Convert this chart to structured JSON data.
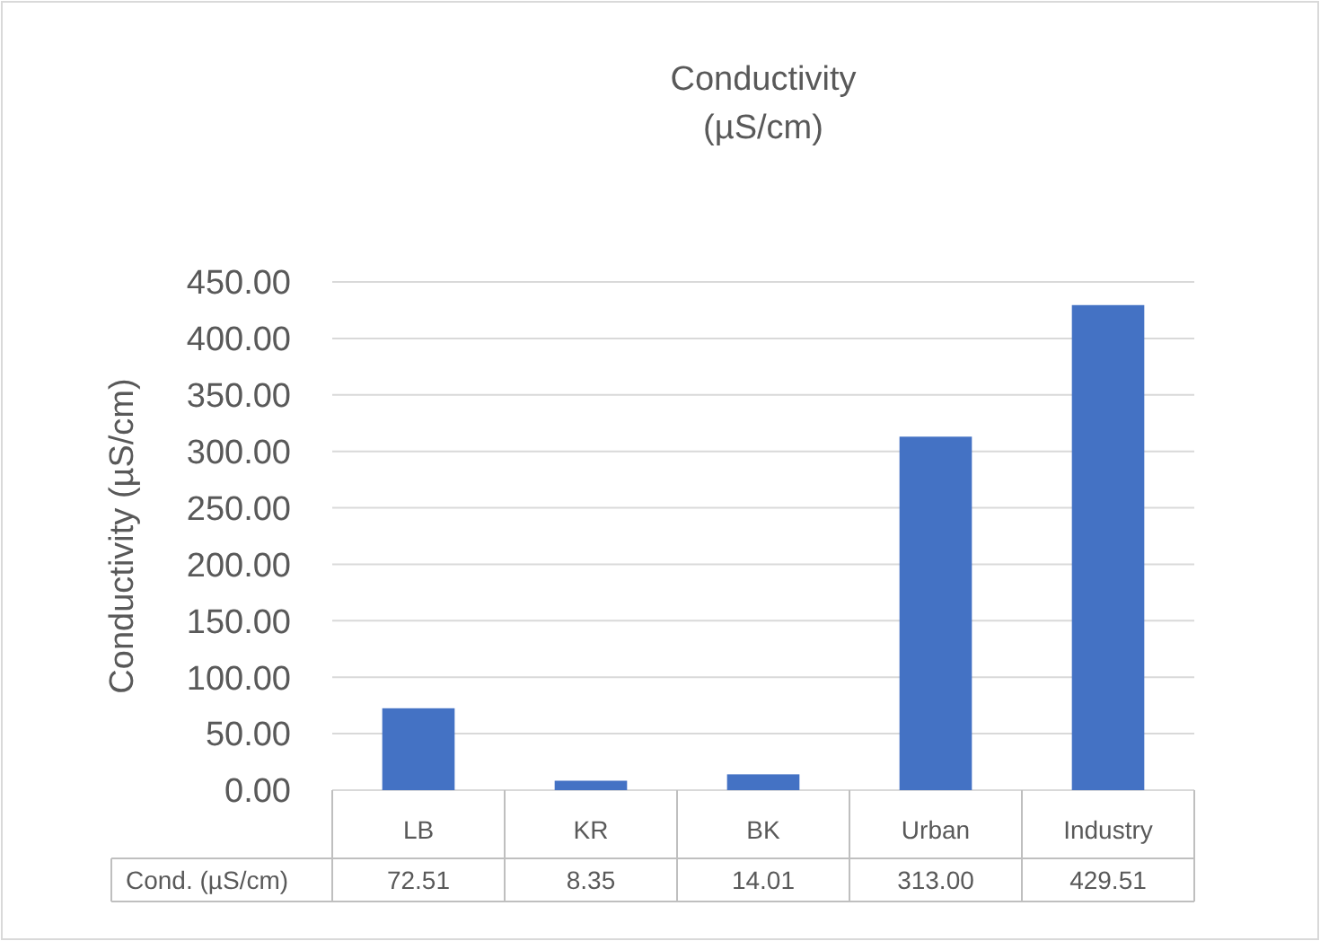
{
  "chart_data": {
    "type": "bar",
    "title": "Conductivity\n(µS/cm)",
    "ylabel": "Conductivity (µS/cm)",
    "categories": [
      "LB",
      "KR",
      "BK",
      "Urban",
      "Industry"
    ],
    "series": [
      {
        "name": "Cond. (µS/cm)",
        "color": "#4472c4",
        "values": [
          72.51,
          8.35,
          14.01,
          313.0,
          429.51
        ],
        "value_labels": [
          "72.51",
          "8.35",
          "14.01",
          "313.00",
          "429.51"
        ]
      }
    ],
    "ylim": [
      0,
      450
    ],
    "yticks": [
      {
        "value": 0,
        "label": "0.00"
      },
      {
        "value": 50,
        "label": "50.00"
      },
      {
        "value": 100,
        "label": "100.00"
      },
      {
        "value": 150,
        "label": "150.00"
      },
      {
        "value": 200,
        "label": "200.00"
      },
      {
        "value": 250,
        "label": "250.00"
      },
      {
        "value": 300,
        "label": "300.00"
      },
      {
        "value": 350,
        "label": "350.00"
      },
      {
        "value": 400,
        "label": "400.00"
      },
      {
        "value": 450,
        "label": "450.00"
      }
    ],
    "grid": "y",
    "legend": false
  }
}
